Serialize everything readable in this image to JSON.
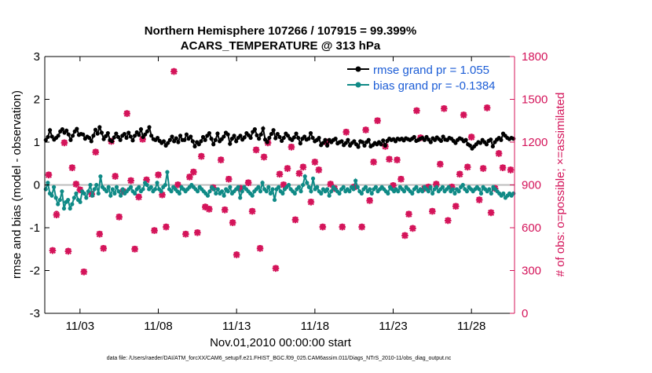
{
  "chart_data": {
    "type": "line",
    "title_line1": "Northern Hemisphere 107266 / 107915 = 99.399%",
    "title_line2": "ACARS_TEMPERATURE @ 313 hPa",
    "xlabel": "Nov.01,2010 00:00:00 start",
    "ylabel_left": "rmse and bias (model - observation)",
    "ylabel_right": "# of obs: o=possible; ×=assimilated",
    "footer": "data file: /Users/raeder/DAI/ATM_forcXX/CAM6_setup/f.e21.FHIST_BGC.f09_025.CAM6assim.011/Diags_NTrS_2010-11/obs_diag_output.nc",
    "x_range": [
      0.75,
      30.75
    ],
    "x_ticks": [
      3,
      8,
      13,
      18,
      23,
      28
    ],
    "x_tick_labels": [
      "11/03",
      "11/08",
      "11/13",
      "11/18",
      "11/23",
      "11/28"
    ],
    "y_left_range": [
      -3,
      3
    ],
    "y_left_ticks": [
      -3,
      -2,
      -1,
      0,
      1,
      2,
      3
    ],
    "y_left_tick_labels": [
      "-3",
      "-2",
      "-1",
      "0",
      "1",
      "2",
      "3"
    ],
    "y_right_range": [
      0,
      1800
    ],
    "y_right_ticks": [
      0,
      300,
      600,
      900,
      1200,
      1500,
      1800
    ],
    "y_right_tick_labels": [
      "0",
      "300",
      "600",
      "900",
      "1200",
      "1500",
      "1800"
    ],
    "colors": {
      "rmse": "#000000",
      "bias": "#0f8a86",
      "obs": "#d4145a",
      "zero_line": "#bdbdbd"
    },
    "series": [
      {
        "name": "rmse grand pr = 1.055",
        "values": [
          1.05,
          1.12,
          1.28,
          1.13,
          1.06,
          1.1,
          1.15,
          1.25,
          1.3,
          1.22,
          1.27,
          1.18,
          1.05,
          1.15,
          1.25,
          1.31,
          1.17,
          1.19,
          1.18,
          1.08,
          1.13,
          1.1,
          1.02,
          1.15,
          1.29,
          1.2,
          1.35,
          1.22,
          1.07,
          1.14,
          1.21,
          1.05,
          1.02,
          1.11,
          1.2,
          1.12,
          1.05,
          1.15,
          1.19,
          1.1,
          1.22,
          1.13,
          1.04,
          1.15,
          1.23,
          1.17,
          1.3,
          1.12,
          1.18,
          1.25,
          1.35,
          1.15,
          1.07,
          1.05,
          1.1,
          1.03,
          0.98,
          1.02,
          0.92,
          0.98,
          1.05,
          1.13,
          1.02,
          1.09,
          1.0,
          1.15,
          1.05,
          1.05,
          1.18,
          1.08,
          1.13,
          1.02,
          0.9,
          1.0,
          0.95,
          1.02,
          1.12,
          1.05,
          1.15,
          1.21,
          1.08,
          0.95,
          1.05,
          1.2,
          1.02,
          1.07,
          1.13,
          1.22,
          1.18,
          0.96,
          1.08,
          1.15,
          1.02,
          1.1,
          1.15,
          1.06,
          1.11,
          1.21,
          1.16,
          1.1,
          1.24,
          1.3,
          1.16,
          1.08,
          1.18,
          1.32,
          1.06,
          1.0,
          1.1,
          1.19,
          1.28,
          1.09,
          1.19,
          1.12,
          1.03,
          1.1,
          1.2,
          1.15,
          1.08,
          1.05,
          1.11,
          1.2,
          1.1,
          0.97,
          1.08,
          1.13,
          1.06,
          1.08,
          1.21,
          1.1,
          1.02,
          1.05,
          1.1,
          0.93,
          0.98,
          1.05,
          0.92,
          1.05,
          1.0,
          1.05,
          1.08,
          0.97,
          1.0,
          1.02,
          0.93,
          0.98,
          1.05,
          0.92,
          0.98,
          1.02,
          0.95,
          0.89,
          1.02,
          1.0,
          0.92,
          1.0,
          1.05,
          0.9,
          0.93,
          0.98,
          0.95,
          1.0,
          0.95,
          1.04,
          0.92,
          1.03,
          1.08,
          1.05,
          1.07,
          1.02,
          1.08,
          1.06,
          1.08,
          1.04,
          1.09,
          1.07,
          1.05,
          1.08,
          1.12,
          1.03,
          1.05,
          1.08,
          1.1,
          1.05,
          1.12,
          1.06,
          1.0,
          1.09,
          1.05,
          1.11,
          1.07,
          1.03,
          1.13,
          1.06,
          1.05,
          1.1,
          1.08,
          1.03,
          0.98,
          1.05,
          1.09,
          1.07,
          1.02,
          1.05,
          0.95,
          0.92,
          0.85,
          0.9,
          0.95,
          1.0,
          0.98,
          1.05,
          1.0,
          0.95,
          1.03,
          1.06,
          0.9,
          1.0,
          1.06,
          1.1,
          1.05,
          1.2,
          1.15,
          1.1,
          1.07,
          1.1,
          1.08
        ]
      },
      {
        "name": "bias grand pr = -0.1384",
        "values": [
          -0.1,
          0.05,
          -0.2,
          -0.25,
          -0.05,
          -0.3,
          -0.45,
          -0.35,
          -0.15,
          -0.55,
          -0.4,
          -0.35,
          -0.55,
          -0.45,
          -0.3,
          -0.2,
          -0.35,
          -0.4,
          -0.15,
          -0.2,
          -0.3,
          -0.15,
          0.0,
          -0.25,
          -0.1,
          0.0,
          -0.2,
          0.2,
          -0.05,
          -0.1,
          -0.15,
          -0.05,
          -0.25,
          -0.1,
          -0.2,
          -0.05,
          -0.15,
          -0.25,
          -0.1,
          -0.2,
          -0.15,
          -0.1,
          -0.05,
          -0.15,
          -0.2,
          -0.1,
          -0.05,
          -0.15,
          -0.1,
          0.05,
          0.0,
          -0.1,
          -0.05,
          -0.15,
          -0.1,
          0.05,
          -0.1,
          -0.15,
          -0.05,
          0.0,
          0.3,
          -0.1,
          -0.15,
          -0.05,
          -0.1,
          -0.15,
          -0.2,
          -0.05,
          -0.1,
          -0.15,
          -0.1,
          -0.05,
          0.0,
          -0.05,
          -0.1,
          -0.15,
          -0.05,
          -0.1,
          -0.15,
          -0.2,
          -0.25,
          -0.15,
          -0.05,
          -0.1,
          -0.2,
          -0.1,
          -0.2,
          -0.15,
          -0.25,
          -0.1,
          -0.15,
          -0.05,
          -0.2,
          -0.15,
          -0.1,
          -0.05,
          -0.3,
          -0.15,
          -0.05,
          -0.1,
          -0.15,
          -0.2,
          -0.25,
          -0.15,
          -0.1,
          -0.05,
          -0.15,
          0.05,
          -0.1,
          -0.15,
          -0.05,
          -0.2,
          -0.1,
          -0.35,
          -0.1,
          -0.05,
          -0.15,
          -0.2,
          -0.1,
          -0.05,
          0.0,
          -0.1,
          -0.15,
          -0.2,
          -0.1,
          -0.05,
          -0.15,
          0.0,
          0.2,
          0.05,
          -0.05,
          -0.15,
          0.15,
          -0.1,
          -0.05,
          -0.15,
          -0.2,
          -0.1,
          -0.15,
          -0.1,
          -0.25,
          -0.15,
          -0.05,
          -0.1,
          -0.15,
          -0.2,
          -0.1,
          -0.05,
          -0.15,
          -0.1,
          -0.15,
          -0.05,
          -0.1,
          0.1,
          -0.05,
          -0.15,
          -0.2,
          -0.1,
          -0.05,
          -0.15,
          -0.1,
          -0.2,
          -0.1,
          -0.05,
          -0.15,
          -0.1,
          -0.05,
          -0.1,
          -0.15,
          -0.2,
          -0.05,
          -0.1,
          -0.15,
          -0.1,
          -0.15,
          -0.05,
          -0.1,
          -0.15,
          -0.05,
          -0.1,
          -0.15,
          -0.2,
          -0.1,
          -0.05,
          -0.15,
          -0.1,
          -0.15,
          -0.05,
          -0.1,
          -0.15,
          -0.05,
          -0.2,
          -0.1,
          -0.05,
          -0.15,
          -0.1,
          -0.05,
          -0.15,
          -0.1,
          -0.05,
          -0.15,
          -0.1,
          -0.2,
          -0.1,
          -0.15,
          -0.05,
          0.0,
          -0.1,
          -0.15,
          -0.05,
          -0.1,
          -0.15,
          -0.1,
          -0.05,
          -0.1,
          -0.2,
          -0.05,
          -0.1,
          -0.15,
          -0.1,
          -0.2,
          -0.05,
          -0.1,
          -0.15,
          -0.2,
          -0.25,
          -0.2,
          -0.3,
          -0.25,
          -0.2,
          -0.25,
          -0.2
        ]
      }
    ],
    "obs_counts": {
      "x": [
        1.0,
        1.25,
        1.5,
        2.0,
        2.25,
        2.5,
        2.75,
        3.0,
        3.25,
        3.75,
        4.0,
        4.25,
        4.5,
        5.0,
        5.25,
        5.5,
        5.75,
        6.0,
        6.25,
        6.5,
        6.75,
        7.0,
        7.25,
        7.75,
        8.0,
        8.25,
        8.5,
        9.0,
        9.25,
        9.75,
        10.0,
        10.25,
        10.5,
        10.75,
        11.0,
        11.25,
        11.5,
        12.0,
        12.25,
        12.5,
        12.75,
        13.0,
        13.25,
        13.75,
        14.0,
        14.25,
        14.5,
        14.75,
        15.0,
        15.5,
        15.75,
        16.0,
        16.25,
        16.5,
        16.75,
        17.0,
        17.25,
        17.75,
        18.0,
        18.25,
        18.5,
        18.75,
        19.0,
        19.25,
        19.75,
        20.0,
        20.5,
        21.0,
        21.25,
        21.5,
        21.75,
        22.0,
        22.5,
        22.75,
        23.0,
        23.25,
        23.5,
        23.75,
        24.0,
        24.25,
        24.5,
        24.75,
        25.0,
        25.25,
        25.5,
        25.75,
        26.0,
        26.25,
        26.5,
        26.75,
        27.0,
        27.25,
        27.5,
        27.75,
        28.0,
        28.5,
        28.75,
        29.0,
        29.25,
        29.5,
        29.75,
        30.0,
        30.5
      ],
      "possible": [
        975,
        445,
        700,
        1200,
        440,
        1025,
        910,
        870,
        295,
        840,
        1135,
        560,
        460,
        1210,
        965,
        680,
        860,
        1405,
        935,
        455,
        820,
        1225,
        940,
        585,
        975,
        835,
        610,
        1700,
        905,
        560,
        960,
        995,
        570,
        1105,
        750,
        735,
        885,
        1080,
        730,
        945,
        640,
        415,
        880,
        920,
        720,
        1150,
        460,
        1100,
        1200,
        320,
        980,
        905,
        1020,
        1170,
        660,
        985,
        1030,
        785,
        1065,
        1010,
        610,
        1205,
        910,
        880,
        610,
        1275,
        890,
        610,
        1290,
        795,
        1065,
        1355,
        1175,
        1085,
        900,
        1080,
        945,
        550,
        700,
        600,
        1425,
        1235,
        880,
        890,
        720,
        910,
        1050,
        1440,
        655,
        890,
        755,
        980,
        1395,
        1030,
        1240,
        800,
        1020,
        1445,
        710,
        880,
        1125,
        1025,
        1010,
        1275,
        1005
      ],
      "assimilated": [
        970,
        440,
        690,
        1195,
        435,
        1020,
        905,
        865,
        290,
        835,
        1130,
        555,
        455,
        1205,
        960,
        675,
        855,
        1400,
        930,
        450,
        815,
        1220,
        935,
        580,
        970,
        830,
        605,
        1695,
        900,
        555,
        955,
        990,
        565,
        1100,
        745,
        730,
        880,
        1075,
        725,
        940,
        635,
        410,
        875,
        915,
        715,
        1145,
        455,
        1095,
        1195,
        315,
        975,
        900,
        1015,
        1165,
        655,
        980,
        1025,
        780,
        1060,
        1005,
        605,
        1200,
        905,
        875,
        605,
        1270,
        885,
        605,
        1285,
        790,
        1060,
        1350,
        1170,
        1080,
        895,
        1075,
        940,
        545,
        695,
        595,
        1420,
        1230,
        875,
        885,
        715,
        905,
        1045,
        1435,
        650,
        885,
        750,
        975,
        1390,
        1025,
        1235,
        795,
        1015,
        1440,
        705,
        875,
        1120,
        1020,
        1005,
        1270,
        1000
      ]
    }
  }
}
